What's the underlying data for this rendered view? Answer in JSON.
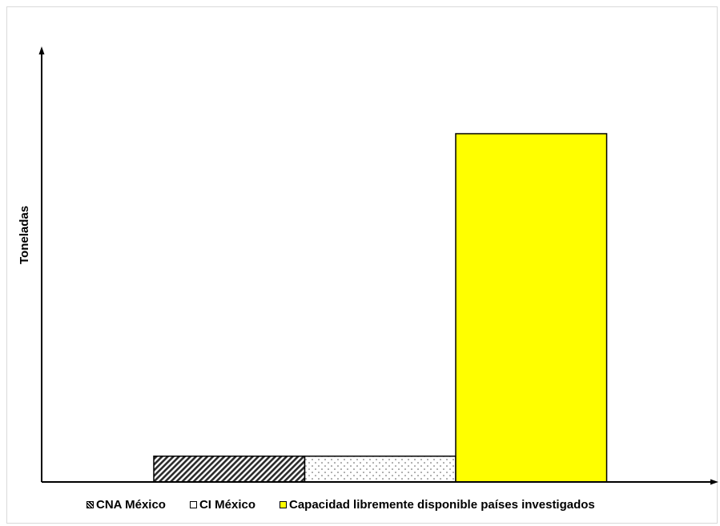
{
  "chart_data": {
    "type": "bar",
    "title": "",
    "xlabel": "",
    "ylabel": "Toneladas",
    "ylim": [
      0,
      100
    ],
    "categories": [
      "CNA México",
      "CI México",
      "Capacidad libremente disponible países investigados"
    ],
    "values": [
      7.4,
      7.4,
      100
    ],
    "colors": [
      "#6f6f6f",
      "#ffffff",
      "#ffff00"
    ],
    "patterns": [
      "hatch",
      "dots",
      "solid"
    ],
    "legend": {
      "placement": "bottom",
      "items": [
        "CNA México",
        "CI México",
        "Capacidad libremente disponible países investigados"
      ]
    },
    "grid": false
  }
}
